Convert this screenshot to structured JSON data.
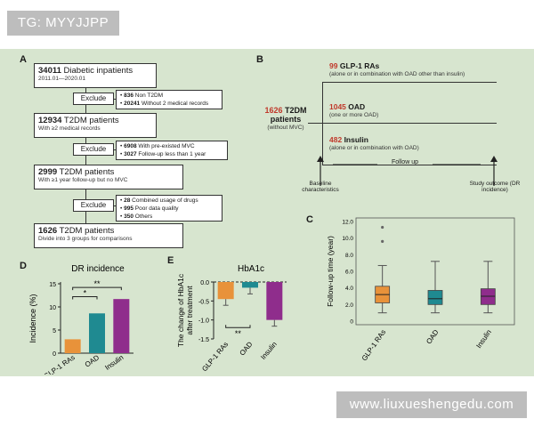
{
  "watermark_top": "TG: MYYJJPP",
  "watermark_bottom": "www.liuxueshengedu.com",
  "panel_a": {
    "label": "A",
    "boxes": [
      {
        "count": "34011",
        "title": "Diabetic inpatients",
        "sub": "2011.01—2020.01"
      },
      {
        "count": "12934",
        "title": "T2DM patients",
        "sub": "With ≥2 medical records"
      },
      {
        "count": "2999",
        "title": "T2DM patients",
        "sub": "With ≥1 year follow-up but no MVC"
      },
      {
        "count": "1626",
        "title": "T2DM patients",
        "sub": "Divide into 3 groups for comparisons"
      }
    ],
    "exclude_label": "Exclude",
    "exclusions": [
      [
        {
          "n": "836",
          "text": "Non T2DM"
        },
        {
          "n": "20241",
          "text": "Without 2 medical records"
        }
      ],
      [
        {
          "n": "6908",
          "text": "With pre-existed MVC"
        },
        {
          "n": "3027",
          "text": "Follow-up less than 1 year"
        }
      ],
      [
        {
          "n": "28",
          "text": "Combined usage of drugs"
        },
        {
          "n": "995",
          "text": "Poor data quality"
        },
        {
          "n": "350",
          "text": "Others"
        }
      ]
    ]
  },
  "panel_b": {
    "label": "B",
    "left_count": "1626",
    "left_title": "T2DM",
    "left_title2": "patients",
    "left_sub": "(without MVC)",
    "groups": [
      {
        "count": "99",
        "name": "GLP-1 RAs",
        "sub": "(alone or in combination with OAD other than insulin)"
      },
      {
        "count": "1045",
        "name": "OAD",
        "sub": "(one or more OAD)"
      },
      {
        "count": "482",
        "name": "Insulin",
        "sub": "(alone or in combination with OAD)"
      }
    ],
    "followup": "Follow up",
    "baseline": "Baseline characteristics",
    "outcome": "Study outcome (DR incidence)"
  },
  "panel_c": {
    "label": "C"
  },
  "panel_d": {
    "label": "D"
  },
  "panel_e": {
    "label": "E"
  },
  "chart_data": [
    {
      "panel": "D",
      "type": "bar",
      "title": "DR incidence",
      "ylabel": "Incidence (%)",
      "xlabel": "",
      "categories": [
        "GLP-1 RAs",
        "OAD",
        "Insulin"
      ],
      "values": [
        3.0,
        8.6,
        11.7
      ],
      "colors": [
        "#e8923a",
        "#1f8a91",
        "#8f2d8c"
      ],
      "ylim": [
        0,
        15
      ],
      "yticks": [
        "0",
        "5",
        "10",
        "15"
      ],
      "significance": [
        "*",
        "**"
      ]
    },
    {
      "panel": "E",
      "type": "bar",
      "title": "HbA1c",
      "ylabel": "The change of HbA1c after treatment",
      "xlabel": "",
      "categories": [
        "GLP-1 RAs",
        "OAD",
        "Insulin"
      ],
      "values": [
        -0.45,
        -0.15,
        -1.0
      ],
      "colors": [
        "#e8923a",
        "#1f8a91",
        "#8f2d8c"
      ],
      "ylim": [
        -1.5,
        0.0
      ],
      "yticks": [
        "0.0",
        "-0.5",
        "-1.0",
        "-1.5"
      ],
      "significance": [
        "**"
      ]
    },
    {
      "panel": "C",
      "type": "box",
      "title": "",
      "ylabel": "Follow-up time (year)",
      "xlabel": "",
      "categories": [
        "GLP-1 RAs",
        "OAD",
        "Insulin"
      ],
      "boxes": [
        {
          "min": 1.0,
          "q1": 2.2,
          "median": 3.2,
          "q3": 4.2,
          "max": 6.7,
          "outliers": [
            9.6,
            11.3
          ]
        },
        {
          "min": 1.0,
          "q1": 2.0,
          "median": 2.7,
          "q3": 3.7,
          "max": 7.2,
          "outliers": []
        },
        {
          "min": 1.0,
          "q1": 2.0,
          "median": 3.0,
          "q3": 3.9,
          "max": 7.2,
          "outliers": []
        }
      ],
      "colors": [
        "#e8923a",
        "#1f8a91",
        "#8f2d8c"
      ],
      "ylim": [
        0,
        12
      ],
      "yticks": [
        "0",
        "2.0",
        "4.0",
        "6.0",
        "8.0",
        "10.0",
        "12.0"
      ]
    }
  ]
}
